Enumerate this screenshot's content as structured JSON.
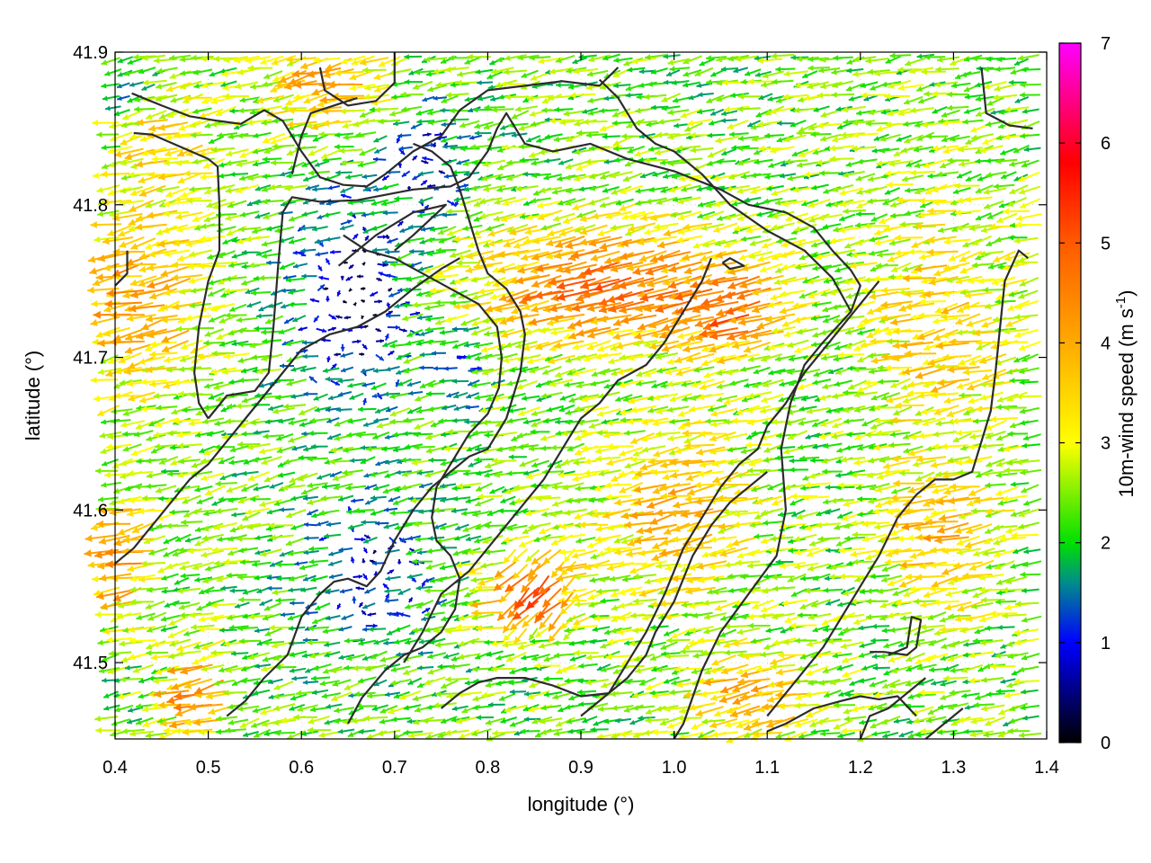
{
  "chart_data": {
    "type": "vector field",
    "title": "",
    "xlabel": "longitude (°)",
    "ylabel": "latitude (°)",
    "xlim": [
      0.4,
      1.4
    ],
    "ylim": [
      41.45,
      41.9
    ],
    "x_ticks": [
      "0.4",
      "0.5",
      "0.6",
      "0.7",
      "0.8",
      "0.9",
      "1.0",
      "1.1",
      "1.2",
      "1.3",
      "1.4"
    ],
    "y_ticks": [
      "41.5",
      "41.6",
      "41.7",
      "41.8",
      "41.9"
    ],
    "colorbar": {
      "label_main": "10m-wind speed (m s",
      "label_sup": "-1",
      "label_end": ")",
      "range": [
        0,
        7
      ],
      "ticks": [
        "0",
        "1",
        "2",
        "3",
        "4",
        "5",
        "6",
        "7"
      ],
      "stops": [
        {
          "value": 0,
          "color": "#000000"
        },
        {
          "value": 1,
          "color": "#0000ff"
        },
        {
          "value": 1.6,
          "color": "#008c8c"
        },
        {
          "value": 2,
          "color": "#00e000"
        },
        {
          "value": 3,
          "color": "#ffff00"
        },
        {
          "value": 4,
          "color": "#ffaa00"
        },
        {
          "value": 5,
          "color": "#ff5a00"
        },
        {
          "value": 5.8,
          "color": "#ff0000"
        },
        {
          "value": 7,
          "color": "#ff00ff"
        }
      ]
    },
    "grid": true,
    "contour_lines": [
      [
        [
          0.418,
          41.873
        ],
        [
          0.45,
          41.865
        ],
        [
          0.48,
          41.858
        ],
        [
          0.51,
          41.855
        ],
        [
          0.535,
          41.853
        ],
        [
          0.56,
          41.862
        ],
        [
          0.58,
          41.855
        ],
        [
          0.6,
          41.835
        ],
        [
          0.62,
          41.818
        ],
        [
          0.645,
          41.813
        ],
        [
          0.67,
          41.812
        ],
        [
          0.69,
          41.82
        ],
        [
          0.72,
          41.835
        ],
        [
          0.75,
          41.845
        ],
        [
          0.77,
          41.862
        ],
        [
          0.8,
          41.875
        ],
        [
          0.84,
          41.878
        ],
        [
          0.88,
          41.881
        ],
        [
          0.92,
          41.878
        ],
        [
          0.94,
          41.89
        ]
      ],
      [
        [
          0.42,
          41.847
        ],
        [
          0.44,
          41.846
        ],
        [
          0.47,
          41.838
        ],
        [
          0.5,
          41.83
        ],
        [
          0.51,
          41.825
        ],
        [
          0.512,
          41.8
        ],
        [
          0.512,
          41.77
        ],
        [
          0.5,
          41.75
        ],
        [
          0.49,
          41.72
        ],
        [
          0.485,
          41.69
        ],
        [
          0.49,
          41.67
        ],
        [
          0.5,
          41.66
        ]
      ],
      [
        [
          0.413,
          41.77
        ],
        [
          0.413,
          41.755
        ],
        [
          0.4,
          41.747
        ]
      ],
      [
        [
          0.5,
          41.66
        ],
        [
          0.52,
          41.675
        ],
        [
          0.55,
          41.678
        ],
        [
          0.565,
          41.69
        ],
        [
          0.57,
          41.72
        ],
        [
          0.575,
          41.76
        ],
        [
          0.58,
          41.795
        ],
        [
          0.59,
          41.805
        ],
        [
          0.62,
          41.802
        ],
        [
          0.66,
          41.803
        ],
        [
          0.72,
          41.81
        ],
        [
          0.76,
          41.812
        ],
        [
          0.78,
          41.818
        ],
        [
          0.8,
          41.835
        ],
        [
          0.81,
          41.85
        ],
        [
          0.82,
          41.86
        ],
        [
          0.84,
          41.84
        ],
        [
          0.87,
          41.835
        ],
        [
          0.91,
          41.84
        ],
        [
          0.95,
          41.83
        ],
        [
          1.0,
          41.822
        ],
        [
          1.05,
          41.81
        ],
        [
          1.08,
          41.8
        ],
        [
          1.12,
          41.795
        ],
        [
          1.15,
          41.785
        ],
        [
          1.17,
          41.77
        ],
        [
          1.19,
          41.757
        ],
        [
          1.2,
          41.747
        ],
        [
          1.19,
          41.73
        ],
        [
          1.16,
          41.71
        ],
        [
          1.14,
          41.695
        ],
        [
          1.125,
          41.67
        ],
        [
          1.115,
          41.64
        ],
        [
          1.12,
          41.6
        ],
        [
          1.11,
          41.57
        ],
        [
          1.08,
          41.545
        ],
        [
          1.05,
          41.52
        ],
        [
          1.03,
          41.495
        ],
        [
          1.01,
          41.46
        ],
        [
          1.0,
          41.45
        ]
      ],
      [
        [
          0.645,
          41.78
        ],
        [
          0.67,
          41.77
        ],
        [
          0.7,
          41.765
        ],
        [
          0.73,
          41.755
        ],
        [
          0.76,
          41.745
        ],
        [
          0.79,
          41.735
        ],
        [
          0.81,
          41.72
        ],
        [
          0.815,
          41.7
        ],
        [
          0.812,
          41.68
        ],
        [
          0.8,
          41.663
        ],
        [
          0.78,
          41.65
        ],
        [
          0.76,
          41.63
        ],
        [
          0.745,
          41.615
        ],
        [
          0.74,
          41.595
        ],
        [
          0.745,
          41.58
        ],
        [
          0.76,
          41.57
        ],
        [
          0.77,
          41.555
        ],
        [
          0.765,
          41.535
        ],
        [
          0.75,
          41.52
        ],
        [
          0.73,
          41.51
        ],
        [
          0.71,
          41.505
        ],
        [
          0.69,
          41.495
        ],
        [
          0.665,
          41.477
        ],
        [
          0.65,
          41.46
        ]
      ],
      [
        [
          0.64,
          41.76
        ],
        [
          0.68,
          41.78
        ],
        [
          0.72,
          41.795
        ],
        [
          0.755,
          41.8
        ],
        [
          0.72,
          41.78
        ],
        [
          0.7,
          41.77
        ]
      ],
      [
        [
          1.052,
          41.762
        ],
        [
          1.06,
          41.765
        ],
        [
          1.075,
          41.76
        ],
        [
          1.06,
          41.758
        ],
        [
          1.052,
          41.762
        ]
      ],
      [
        [
          0.52,
          41.465
        ],
        [
          0.54,
          41.475
        ],
        [
          0.56,
          41.49
        ],
        [
          0.585,
          41.505
        ],
        [
          0.6,
          41.53
        ],
        [
          0.62,
          41.545
        ],
        [
          0.635,
          41.553
        ],
        [
          0.65,
          41.555
        ],
        [
          0.67,
          41.55
        ],
        [
          0.685,
          41.56
        ],
        [
          0.7,
          41.58
        ],
        [
          0.72,
          41.6
        ],
        [
          0.74,
          41.615
        ],
        [
          0.76,
          41.625
        ],
        [
          0.78,
          41.635
        ],
        [
          0.8,
          41.64
        ],
        [
          0.82,
          41.66
        ],
        [
          0.835,
          41.69
        ],
        [
          0.84,
          41.715
        ],
        [
          0.835,
          41.73
        ],
        [
          0.82,
          41.745
        ],
        [
          0.8,
          41.755
        ],
        [
          0.79,
          41.77
        ],
        [
          0.78,
          41.79
        ],
        [
          0.77,
          41.81
        ],
        [
          0.76,
          41.825
        ],
        [
          0.74,
          41.835
        ],
        [
          0.72,
          41.84
        ]
      ],
      [
        [
          0.4,
          41.565
        ],
        [
          0.42,
          41.575
        ],
        [
          0.44,
          41.59
        ],
        [
          0.46,
          41.605
        ],
        [
          0.48,
          41.62
        ],
        [
          0.5,
          41.63
        ],
        [
          0.52,
          41.645
        ],
        [
          0.54,
          41.66
        ],
        [
          0.56,
          41.675
        ],
        [
          0.58,
          41.69
        ],
        [
          0.6,
          41.705
        ],
        [
          0.63,
          41.715
        ],
        [
          0.66,
          41.72
        ],
        [
          0.69,
          41.73
        ],
        [
          0.72,
          41.745
        ],
        [
          0.75,
          41.758
        ],
        [
          0.77,
          41.765
        ]
      ],
      [
        [
          0.71,
          41.5
        ],
        [
          0.73,
          41.52
        ],
        [
          0.75,
          41.545
        ],
        [
          0.78,
          41.56
        ],
        [
          0.8,
          41.575
        ],
        [
          0.82,
          41.59
        ],
        [
          0.84,
          41.605
        ],
        [
          0.86,
          41.62
        ],
        [
          0.88,
          41.64
        ],
        [
          0.9,
          41.66
        ],
        [
          0.92,
          41.67
        ],
        [
          0.94,
          41.685
        ],
        [
          0.97,
          41.695
        ],
        [
          0.99,
          41.71
        ],
        [
          1.01,
          41.73
        ],
        [
          1.03,
          41.75
        ],
        [
          1.04,
          41.765
        ]
      ],
      [
        [
          0.75,
          41.47
        ],
        [
          0.77,
          41.48
        ],
        [
          0.79,
          41.487
        ],
        [
          0.81,
          41.49
        ],
        [
          0.84,
          41.49
        ],
        [
          0.87,
          41.485
        ],
        [
          0.9,
          41.478
        ],
        [
          0.93,
          41.48
        ],
        [
          0.95,
          41.5
        ],
        [
          0.97,
          41.52
        ],
        [
          0.99,
          41.545
        ],
        [
          1.01,
          41.575
        ],
        [
          1.03,
          41.595
        ],
        [
          1.05,
          41.615
        ],
        [
          1.07,
          41.63
        ],
        [
          1.09,
          41.64
        ],
        [
          1.1,
          41.655
        ],
        [
          1.12,
          41.67
        ],
        [
          1.14,
          41.69
        ],
        [
          1.16,
          41.705
        ],
        [
          1.18,
          41.72
        ],
        [
          1.2,
          41.735
        ],
        [
          1.22,
          41.75
        ]
      ],
      [
        [
          0.9,
          41.465
        ],
        [
          0.92,
          41.475
        ],
        [
          0.95,
          41.49
        ],
        [
          0.97,
          41.505
        ],
        [
          0.98,
          41.52
        ],
        [
          1.0,
          41.54
        ],
        [
          1.02,
          41.57
        ],
        [
          1.04,
          41.59
        ],
        [
          1.06,
          41.605
        ],
        [
          1.08,
          41.615
        ],
        [
          1.1,
          41.625
        ]
      ],
      [
        [
          1.1,
          41.455
        ],
        [
          1.12,
          41.46
        ],
        [
          1.15,
          41.47
        ],
        [
          1.18,
          41.475
        ],
        [
          1.2,
          41.478
        ],
        [
          1.22,
          41.476
        ],
        [
          1.24,
          41.478
        ],
        [
          1.26,
          41.465
        ]
      ],
      [
        [
          1.2,
          41.45
        ],
        [
          1.21,
          41.465
        ],
        [
          1.23,
          41.47
        ],
        [
          1.25,
          41.48
        ],
        [
          1.27,
          41.49
        ]
      ],
      [
        [
          1.21,
          41.507
        ],
        [
          1.225,
          41.507
        ],
        [
          1.25,
          41.505
        ],
        [
          1.26,
          41.51
        ],
        [
          1.265,
          41.528
        ],
        [
          1.255,
          41.53
        ],
        [
          1.25,
          41.51
        ],
        [
          1.23,
          41.505
        ]
      ],
      [
        [
          1.27,
          41.45
        ],
        [
          1.29,
          41.46
        ],
        [
          1.31,
          41.47
        ]
      ],
      [
        [
          1.3,
          41.62
        ],
        [
          1.32,
          41.625
        ],
        [
          1.33,
          41.645
        ],
        [
          1.34,
          41.665
        ],
        [
          1.345,
          41.69
        ],
        [
          1.35,
          41.72
        ],
        [
          1.355,
          41.75
        ],
        [
          1.37,
          41.77
        ],
        [
          1.38,
          41.765
        ]
      ],
      [
        [
          1.3,
          41.62
        ],
        [
          1.28,
          41.62
        ],
        [
          1.26,
          41.61
        ],
        [
          1.24,
          41.595
        ],
        [
          1.22,
          41.57
        ],
        [
          1.2,
          41.55
        ],
        [
          1.18,
          41.53
        ],
        [
          1.16,
          41.51
        ],
        [
          1.14,
          41.495
        ],
        [
          1.12,
          41.48
        ],
        [
          1.1,
          41.465
        ]
      ],
      [
        [
          1.33,
          41.89
        ],
        [
          1.335,
          41.86
        ],
        [
          1.36,
          41.852
        ],
        [
          1.385,
          41.85
        ]
      ],
      [
        [
          0.92,
          41.882
        ],
        [
          0.94,
          41.87
        ],
        [
          0.96,
          41.85
        ],
        [
          0.98,
          41.84
        ],
        [
          1.0,
          41.835
        ],
        [
          1.03,
          41.82
        ],
        [
          1.06,
          41.8
        ],
        [
          1.1,
          41.783
        ],
        [
          1.14,
          41.77
        ],
        [
          1.17,
          41.752
        ],
        [
          1.19,
          41.73
        ]
      ],
      [
        [
          0.62,
          41.89
        ],
        [
          0.625,
          41.875
        ],
        [
          0.65,
          41.865
        ],
        [
          0.68,
          41.868
        ],
        [
          0.7,
          41.88
        ],
        [
          0.7,
          41.9
        ]
      ],
      [
        [
          0.59,
          41.82
        ],
        [
          0.6,
          41.845
        ],
        [
          0.61,
          41.86
        ],
        [
          0.63,
          41.864
        ],
        [
          0.66,
          41.87
        ]
      ]
    ]
  }
}
